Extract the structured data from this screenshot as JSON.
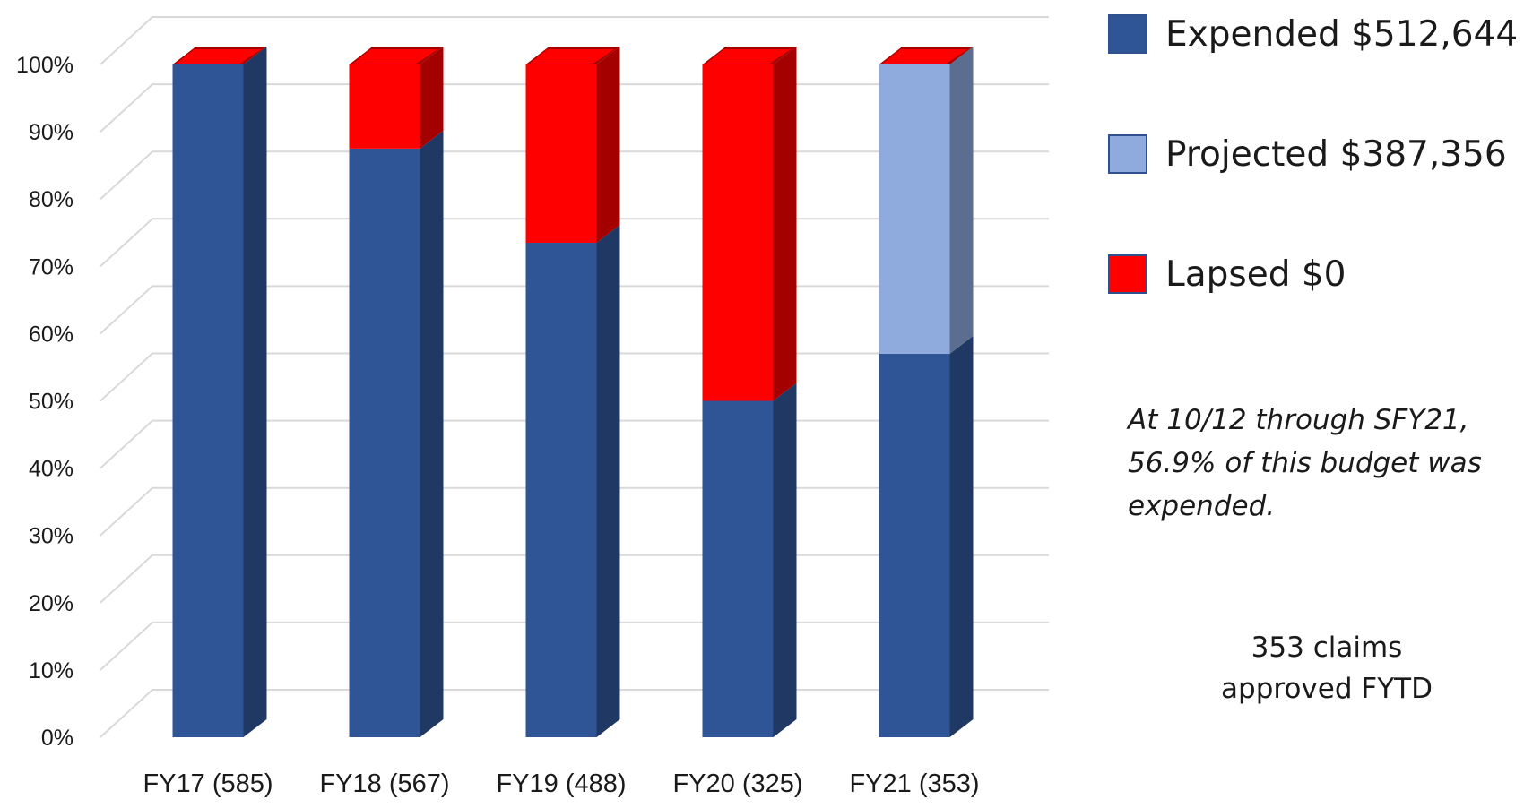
{
  "chart_data": {
    "type": "bar",
    "stacked": true,
    "percent_stacked": true,
    "three_d": true,
    "title": "",
    "xlabel": "",
    "ylabel": "",
    "ylim": [
      0,
      100
    ],
    "y_ticks": [
      "0%",
      "10%",
      "20%",
      "30%",
      "40%",
      "50%",
      "60%",
      "70%",
      "80%",
      "90%",
      "100%"
    ],
    "grid": true,
    "legend_position": "right",
    "categories": [
      "FY17 (585)",
      "FY18 (567)",
      "FY19 (488)",
      "FY20 (325)",
      "FY21 (353)"
    ],
    "series": [
      {
        "name": "Expended $512,644",
        "values": [
          100,
          87.5,
          73.5,
          50,
          57
        ],
        "color": "#2f5597",
        "side_color": "#1f3864"
      },
      {
        "name": "Projected $387,356",
        "values": [
          0,
          0,
          0,
          0,
          43
        ],
        "color": "#8faadc",
        "side_color": "#5b6e8f"
      },
      {
        "name": "Lapsed $0",
        "values": [
          0,
          12.5,
          26.5,
          50,
          0
        ],
        "color": "#ff0000",
        "side_color": "#a50000"
      }
    ]
  },
  "annotation": {
    "line1": "At 10/12 through SFY21,",
    "line2": "56.9% of this budget was",
    "line3": "expended."
  },
  "claims_note": {
    "line1": "353 claims",
    "line2": "approved FYTD"
  }
}
